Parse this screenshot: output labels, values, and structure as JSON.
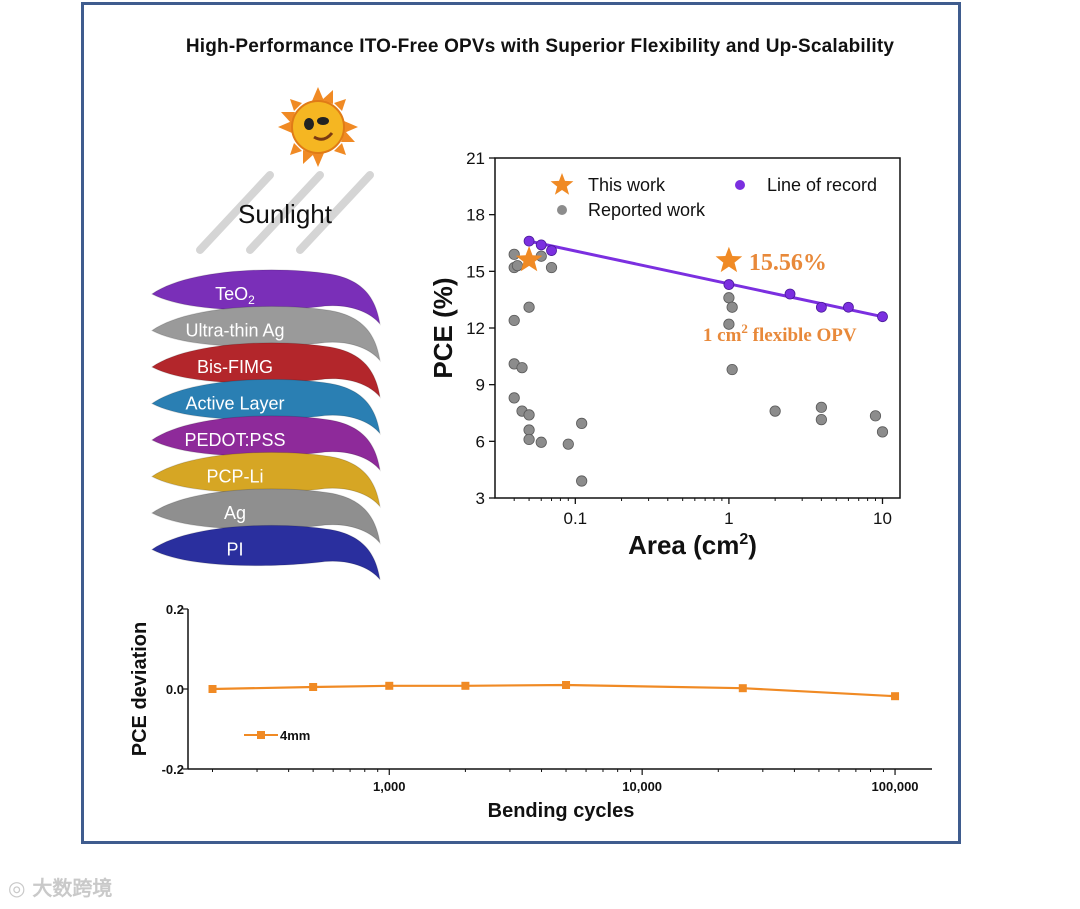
{
  "title": "High-Performance ITO-Free OPVs with Superior Flexibility and Up-Scalability",
  "illustration": {
    "sun_label": "Sunlight",
    "layers": [
      "TeO2",
      "Ultra-thin Ag",
      "Bis-FIMG",
      "Active Layer",
      "PEDOT:PSS",
      "PCP-Li",
      "Ag",
      "PI"
    ],
    "layer_colors": [
      "#7a2fb8",
      "#9a9a9a",
      "#b3262b",
      "#2a7fb3",
      "#8e2a9a",
      "#d6a624",
      "#8f8f8f",
      "#2a2f9e"
    ]
  },
  "watermark": "大数跨境",
  "chart_data": [
    {
      "type": "scatter",
      "xscale": "log",
      "xlabel": "Area (cm",
      "xlabel_sup": "2",
      "xlabel_end": ")",
      "ylabel": "PCE (%)",
      "xlim": [
        0.03,
        13
      ],
      "ylim": [
        3,
        21
      ],
      "xticks": [
        0.1,
        1,
        10
      ],
      "xtick_labels": [
        "0.1",
        "1",
        "10"
      ],
      "yticks": [
        3,
        6,
        9,
        12,
        15,
        18,
        21
      ],
      "ytick_labels": [
        "3",
        "6",
        "9",
        "12",
        "15",
        "18",
        "21"
      ],
      "legend": {
        "this_work": "This work",
        "line_of_record": "Line of record",
        "reported": "Reported work"
      },
      "series": [
        {
          "name": "Reported work",
          "color": "#8c8c8c",
          "points": [
            [
              0.04,
              15.9
            ],
            [
              0.04,
              15.2
            ],
            [
              0.042,
              15.3
            ],
            [
              0.05,
              13.1
            ],
            [
              0.04,
              12.4
            ],
            [
              0.04,
              10.1
            ],
            [
              0.045,
              9.9
            ],
            [
              0.04,
              8.3
            ],
            [
              0.045,
              7.6
            ],
            [
              0.05,
              7.4
            ],
            [
              0.05,
              6.6
            ],
            [
              0.05,
              6.1
            ],
            [
              0.06,
              5.95
            ],
            [
              0.09,
              5.85
            ],
            [
              0.11,
              6.95
            ],
            [
              0.11,
              3.9
            ],
            [
              0.06,
              15.8
            ],
            [
              0.07,
              15.2
            ],
            [
              1.0,
              13.6
            ],
            [
              1.05,
              13.1
            ],
            [
              1.0,
              12.2
            ],
            [
              1.05,
              9.8
            ],
            [
              2.0,
              7.6
            ],
            [
              4.0,
              7.8
            ],
            [
              4.0,
              7.15
            ],
            [
              9.0,
              7.35
            ],
            [
              10.0,
              6.5
            ]
          ]
        },
        {
          "name": "Line of record",
          "color": "#7b2fe0",
          "points": [
            [
              0.05,
              16.6
            ],
            [
              0.06,
              16.4
            ],
            [
              0.07,
              16.1
            ],
            [
              1.0,
              14.3
            ],
            [
              2.5,
              13.8
            ],
            [
              4.0,
              13.1
            ],
            [
              6.0,
              13.1
            ],
            [
              10.0,
              12.6
            ]
          ]
        },
        {
          "name": "This work",
          "color": "#f08a24",
          "points": [
            [
              0.05,
              15.6
            ],
            [
              1.0,
              15.56
            ]
          ]
        }
      ],
      "annotations": {
        "value": "15.56%",
        "caption": "1 cm",
        "caption_sup": "2",
        "caption_end": " flexible OPV"
      }
    },
    {
      "type": "line",
      "xscale": "log",
      "xlabel": "Bending cycles",
      "ylabel": "PCE deviation",
      "xlim": [
        160,
        140000
      ],
      "ylim": [
        -0.2,
        0.2
      ],
      "xticks": [
        1000,
        10000,
        100000
      ],
      "xtick_labels": [
        "1,000",
        "10,000",
        "100,000"
      ],
      "yticks": [
        -0.2,
        0.0,
        0.2
      ],
      "ytick_labels": [
        "-0.2",
        "0.0",
        "0.2"
      ],
      "series": [
        {
          "name": "4mm",
          "color": "#f08a24",
          "x": [
            200,
            500,
            1000,
            2000,
            5000,
            25000,
            100000
          ],
          "y": [
            0.0,
            0.005,
            0.008,
            0.008,
            0.01,
            0.002,
            -0.018
          ]
        }
      ]
    }
  ]
}
